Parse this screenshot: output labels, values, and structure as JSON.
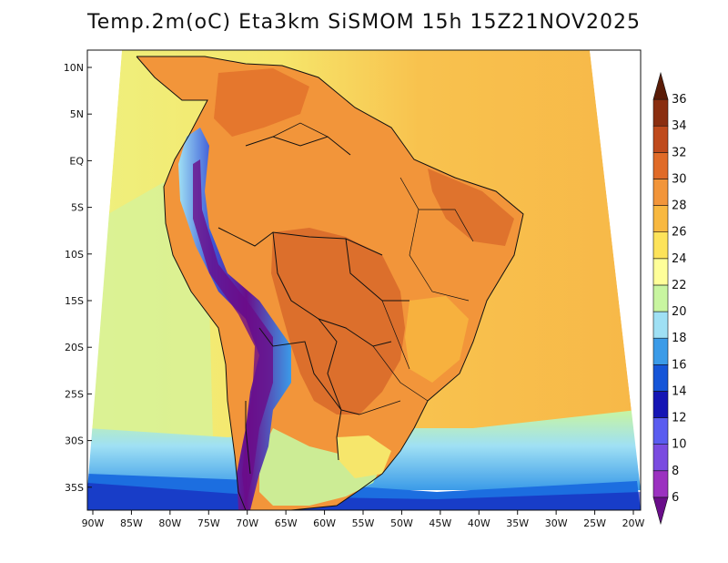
{
  "title": "Temp.2m(oC) Eta3km SiSMOM 15h 15Z21NOV2025",
  "lat_labels": [
    "10N",
    "5N",
    "EQ",
    "5S",
    "10S",
    "15S",
    "20S",
    "25S",
    "30S",
    "35S"
  ],
  "lon_labels": [
    "90W",
    "85W",
    "80W",
    "75W",
    "70W",
    "65W",
    "60W",
    "55W",
    "50W",
    "45W",
    "40W",
    "35W",
    "30W",
    "25W",
    "20W"
  ],
  "colorbar": {
    "labels": [
      "6",
      "8",
      "10",
      "12",
      "14",
      "16",
      "18",
      "20",
      "22",
      "24",
      "26",
      "28",
      "30",
      "32",
      "34",
      "36"
    ],
    "colors": [
      "#6a0d8a",
      "#9b31c0",
      "#7a4be0",
      "#5a5cf0",
      "#1515b4",
      "#1555d8",
      "#3b9be8",
      "#9fe0f4",
      "#c8f5a0",
      "#ffff99",
      "#fde35a",
      "#f8b840",
      "#f2953a",
      "#e06b28",
      "#bf4a1c",
      "#8a2e10",
      "#5a1c08"
    ]
  },
  "regions": {
    "ocean_west": "#f3ec7e",
    "ocean_east": "#f8c24e",
    "continent": "#f29a3d",
    "hot_core": "#d8682a",
    "andes": "#3b58d8",
    "south_cold": "#8fd8f0"
  }
}
